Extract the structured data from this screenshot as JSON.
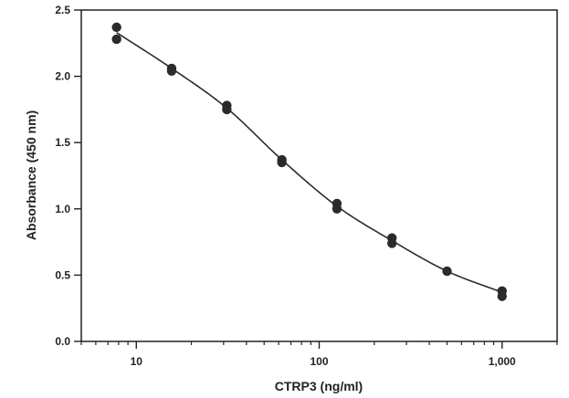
{
  "chart_data": {
    "type": "scatter",
    "title": "",
    "xlabel": "CTRP3 (ng/ml)",
    "ylabel": "Absorbance (450 nm)",
    "xscale": "log",
    "xlim": [
      5,
      2000
    ],
    "ylim": [
      0,
      2.5
    ],
    "x_ticks": [
      {
        "value": 10,
        "label": "10"
      },
      {
        "value": 100,
        "label": "100"
      },
      {
        "value": 1000,
        "label": "1,000"
      }
    ],
    "y_ticks": [
      {
        "value": 0.0,
        "label": "0.0"
      },
      {
        "value": 0.5,
        "label": "0.5"
      },
      {
        "value": 1.0,
        "label": "1.0"
      },
      {
        "value": 1.5,
        "label": "1.5"
      },
      {
        "value": 2.0,
        "label": "2.0"
      },
      {
        "value": 2.5,
        "label": "2.5"
      }
    ],
    "grid": false,
    "legend": "none",
    "colors": {
      "points": "#2b2b2b",
      "curve": "#2b2b2b",
      "axes": "#222222"
    },
    "series": [
      {
        "points": [
          {
            "x": 7.8,
            "y": 2.37
          },
          {
            "x": 7.8,
            "y": 2.28
          },
          {
            "x": 15.6,
            "y": 2.06
          },
          {
            "x": 15.6,
            "y": 2.04
          },
          {
            "x": 31.25,
            "y": 1.78
          },
          {
            "x": 31.25,
            "y": 1.75
          },
          {
            "x": 62.5,
            "y": 1.37
          },
          {
            "x": 62.5,
            "y": 1.35
          },
          {
            "x": 125,
            "y": 1.04
          },
          {
            "x": 125,
            "y": 1.0
          },
          {
            "x": 250,
            "y": 0.78
          },
          {
            "x": 250,
            "y": 0.74
          },
          {
            "x": 500,
            "y": 0.53
          },
          {
            "x": 1000,
            "y": 0.38
          },
          {
            "x": 1000,
            "y": 0.34
          }
        ]
      }
    ],
    "fit_curve": [
      {
        "x": 7.8,
        "y": 2.33
      },
      {
        "x": 15.6,
        "y": 2.06
      },
      {
        "x": 31.25,
        "y": 1.76
      },
      {
        "x": 62.5,
        "y": 1.37
      },
      {
        "x": 125,
        "y": 1.02
      },
      {
        "x": 250,
        "y": 0.76
      },
      {
        "x": 500,
        "y": 0.53
      },
      {
        "x": 1000,
        "y": 0.37
      }
    ]
  }
}
